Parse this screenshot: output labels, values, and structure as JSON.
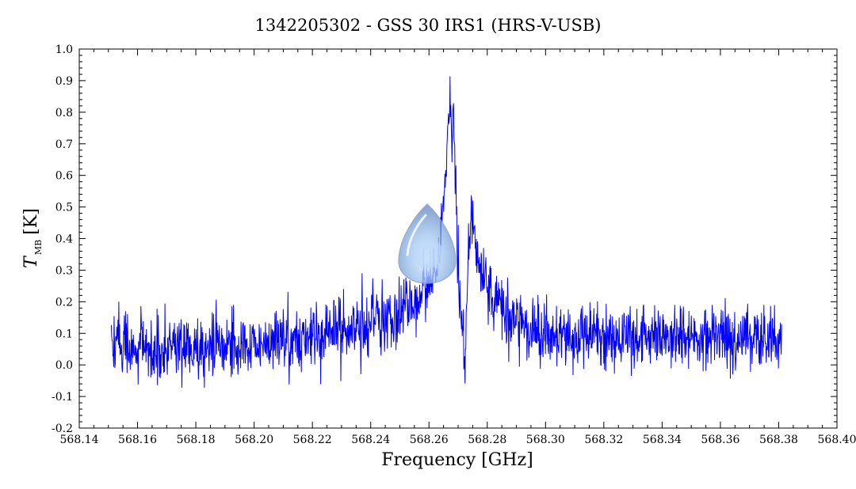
{
  "chart_data": {
    "type": "line",
    "title": "1342205302 - GSS 30 IRS1 (HRS-V-USB)",
    "xlabel": "Frequency [GHz]",
    "ylabel": {
      "symbol": "T",
      "subscript": "MB",
      "unit": "[K]"
    },
    "xlim": [
      568.14,
      568.4
    ],
    "ylim": [
      -0.2,
      1.0
    ],
    "x_ticks": [
      "568.14",
      "568.16",
      "568.18",
      "568.20",
      "568.22",
      "568.24",
      "568.26",
      "568.28",
      "568.30",
      "568.32",
      "568.34",
      "568.36",
      "568.38",
      "568.40"
    ],
    "y_ticks": [
      "-0.2",
      "-0.1",
      "0.0",
      "0.1",
      "0.2",
      "0.3",
      "0.4",
      "0.5",
      "0.6",
      "0.7",
      "0.8",
      "0.9",
      "1.0"
    ],
    "grid": false,
    "colors": {
      "line": "#0000ff",
      "axes": "#000000"
    },
    "series": [
      {
        "x_range": [
          568.151,
          568.381
        ],
        "envelope": [
          [
            568.151,
            0.07
          ],
          [
            568.16,
            0.05
          ],
          [
            568.18,
            0.06
          ],
          [
            568.2,
            0.07
          ],
          [
            568.22,
            0.09
          ],
          [
            568.235,
            0.11
          ],
          [
            568.245,
            0.14
          ],
          [
            568.25,
            0.17
          ],
          [
            568.255,
            0.21
          ],
          [
            568.26,
            0.26
          ],
          [
            568.263,
            0.32
          ],
          [
            568.2655,
            0.58
          ],
          [
            568.267,
            0.82
          ],
          [
            568.2685,
            0.76
          ],
          [
            568.2695,
            0.45
          ],
          [
            568.2705,
            0.2
          ],
          [
            568.2715,
            0.04
          ],
          [
            568.2725,
            0.01
          ],
          [
            568.2735,
            0.35
          ],
          [
            568.2745,
            0.5
          ],
          [
            568.276,
            0.37
          ],
          [
            568.279,
            0.28
          ],
          [
            568.283,
            0.2
          ],
          [
            568.29,
            0.13
          ],
          [
            568.3,
            0.1
          ],
          [
            568.32,
            0.09
          ],
          [
            568.35,
            0.08
          ],
          [
            568.381,
            0.08
          ]
        ],
        "noise_rms": 0.05
      }
    ]
  },
  "overlay": {
    "icon": "droplet-icon"
  }
}
